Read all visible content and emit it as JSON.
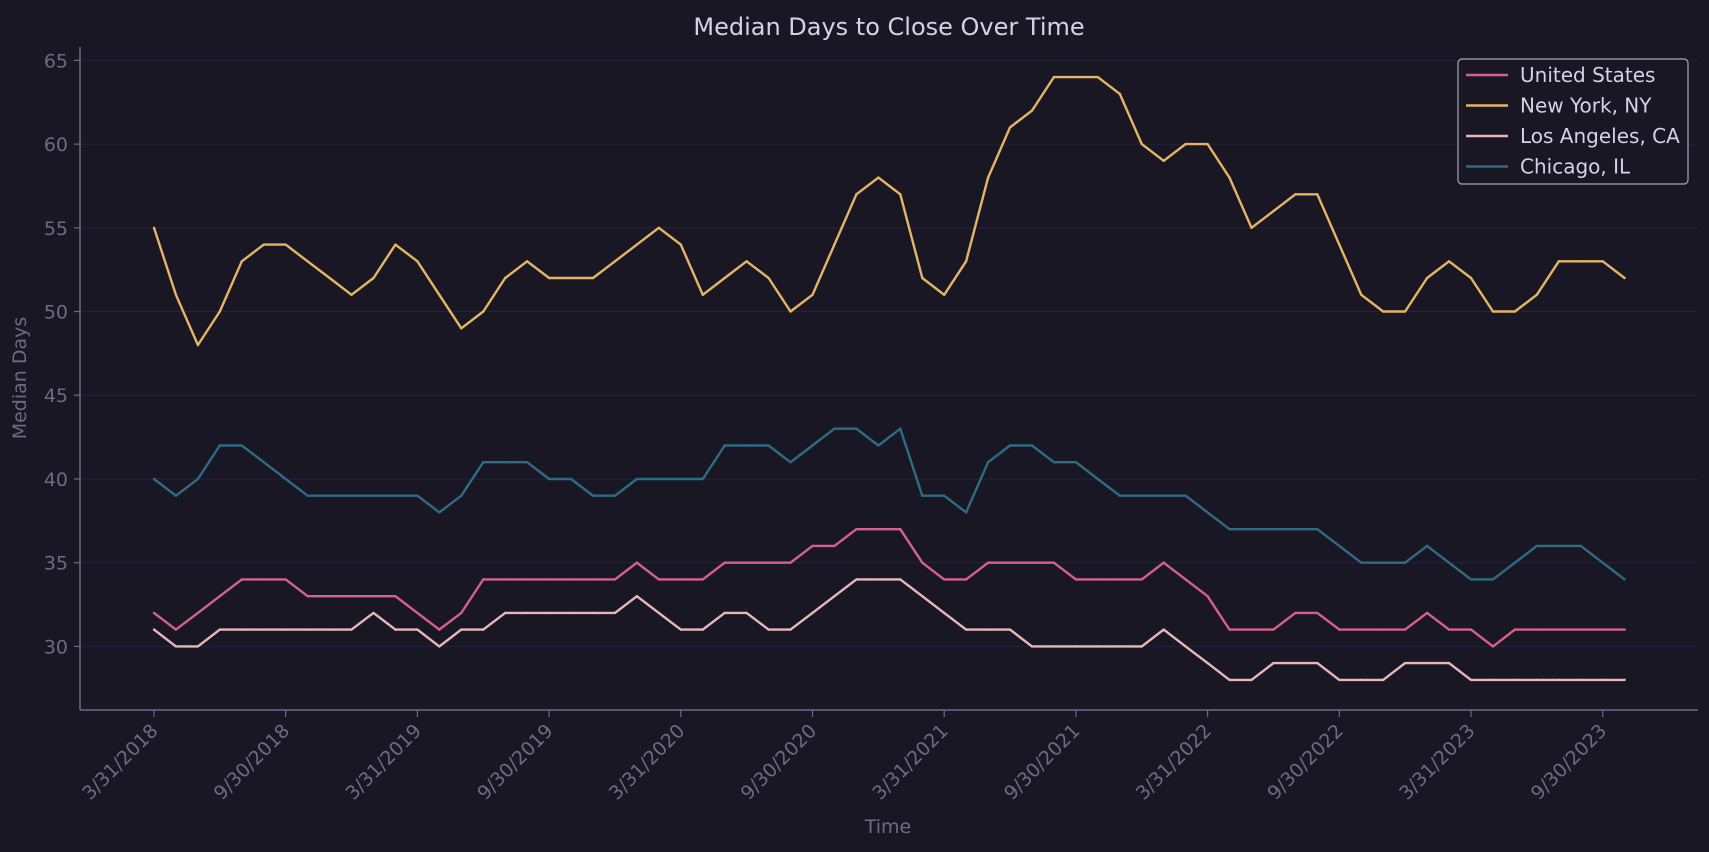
{
  "colors": {
    "background": "#1a1724",
    "axis": "#6e6a82",
    "grid": "#25223a",
    "text": "#d6d1e6",
    "legend_border": "#aaa6bc"
  },
  "chart_data": {
    "type": "line",
    "title": "Median Days to Close Over Time",
    "xlabel": "Time",
    "ylabel": "Median Days",
    "ylim": [
      26.2,
      65.8
    ],
    "yticks": [
      30,
      35,
      40,
      45,
      50,
      55,
      60,
      65
    ],
    "xtick_labels": [
      "3/31/2018",
      "9/30/2018",
      "3/31/2019",
      "9/30/2019",
      "3/31/2020",
      "9/30/2020",
      "3/31/2021",
      "9/30/2021",
      "3/31/2022",
      "9/30/2022",
      "3/31/2023",
      "9/30/2023"
    ],
    "grid": "horizontal",
    "legend_position": "top-right",
    "x": [
      "3/31/2018",
      "4/30/2018",
      "5/31/2018",
      "6/30/2018",
      "7/31/2018",
      "8/31/2018",
      "9/30/2018",
      "10/31/2018",
      "11/30/2018",
      "12/31/2018",
      "1/31/2019",
      "2/28/2019",
      "3/31/2019",
      "4/30/2019",
      "5/31/2019",
      "6/30/2019",
      "7/31/2019",
      "8/31/2019",
      "9/30/2019",
      "10/31/2019",
      "11/30/2019",
      "12/31/2019",
      "1/31/2020",
      "2/29/2020",
      "3/31/2020",
      "4/30/2020",
      "5/31/2020",
      "6/30/2020",
      "7/31/2020",
      "8/31/2020",
      "9/30/2020",
      "10/31/2020",
      "11/30/2020",
      "12/31/2020",
      "1/31/2021",
      "2/28/2021",
      "3/31/2021",
      "4/30/2021",
      "5/31/2021",
      "6/30/2021",
      "7/31/2021",
      "8/31/2021",
      "9/30/2021",
      "10/31/2021",
      "11/30/2021",
      "12/31/2021",
      "1/31/2022",
      "2/28/2022",
      "3/31/2022",
      "4/30/2022",
      "5/31/2022",
      "6/30/2022",
      "7/31/2022",
      "8/31/2022",
      "9/30/2022",
      "10/31/2022",
      "11/30/2022",
      "12/31/2022",
      "1/31/2023",
      "2/28/2023",
      "3/31/2023",
      "4/30/2023",
      "5/31/2023",
      "6/30/2023",
      "7/31/2023",
      "8/31/2023",
      "9/30/2023",
      "10/31/2023"
    ],
    "series": [
      {
        "name": "United States",
        "color": "#d5618c",
        "values": [
          32,
          31,
          32,
          33,
          34,
          34,
          34,
          33,
          33,
          33,
          33,
          33,
          32,
          31,
          32,
          34,
          34,
          34,
          34,
          34,
          34,
          34,
          35,
          34,
          34,
          34,
          35,
          35,
          35,
          35,
          36,
          36,
          37,
          37,
          37,
          35,
          34,
          34,
          35,
          35,
          35,
          35,
          34,
          34,
          34,
          34,
          35,
          34,
          33,
          31,
          31,
          31,
          32,
          32,
          31,
          31,
          31,
          31,
          32,
          31,
          31,
          30,
          31,
          31,
          31,
          31,
          31,
          31
        ]
      },
      {
        "name": "New York, NY",
        "color": "#e5b567",
        "values": [
          55,
          51,
          48,
          50,
          53,
          54,
          54,
          53,
          52,
          51,
          52,
          54,
          53,
          51,
          49,
          50,
          52,
          53,
          52,
          52,
          52,
          53,
          54,
          55,
          54,
          51,
          52,
          53,
          52,
          50,
          51,
          54,
          57,
          58,
          57,
          52,
          51,
          53,
          58,
          61,
          62,
          64,
          64,
          64,
          63,
          60,
          59,
          60,
          60,
          58,
          55,
          56,
          57,
          57,
          54,
          51,
          50,
          50,
          52,
          53,
          52,
          50,
          50,
          51,
          53,
          53,
          53,
          52
        ]
      },
      {
        "name": "Los Angeles, CA",
        "color": "#e8b8b8",
        "values": [
          31,
          30,
          30,
          31,
          31,
          31,
          31,
          31,
          31,
          31,
          32,
          31,
          31,
          30,
          31,
          31,
          32,
          32,
          32,
          32,
          32,
          32,
          33,
          32,
          31,
          31,
          32,
          32,
          31,
          31,
          32,
          33,
          34,
          34,
          34,
          33,
          32,
          31,
          31,
          31,
          30,
          30,
          30,
          30,
          30,
          30,
          31,
          30,
          29,
          28,
          28,
          29,
          29,
          29,
          28,
          28,
          28,
          29,
          29,
          29,
          28,
          28,
          28,
          28,
          28,
          28,
          28,
          28
        ]
      },
      {
        "name": "Chicago, IL",
        "color": "#2f6b85",
        "values": [
          40,
          39,
          40,
          42,
          42,
          41,
          40,
          39,
          39,
          39,
          39,
          39,
          39,
          38,
          39,
          41,
          41,
          41,
          40,
          40,
          39,
          39,
          40,
          40,
          40,
          40,
          42,
          42,
          42,
          41,
          42,
          43,
          43,
          42,
          43,
          39,
          39,
          38,
          41,
          42,
          42,
          41,
          41,
          40,
          39,
          39,
          39,
          39,
          38,
          37,
          37,
          37,
          37,
          37,
          36,
          35,
          35,
          35,
          36,
          35,
          34,
          34,
          35,
          36,
          36,
          36,
          35,
          34
        ]
      }
    ]
  }
}
